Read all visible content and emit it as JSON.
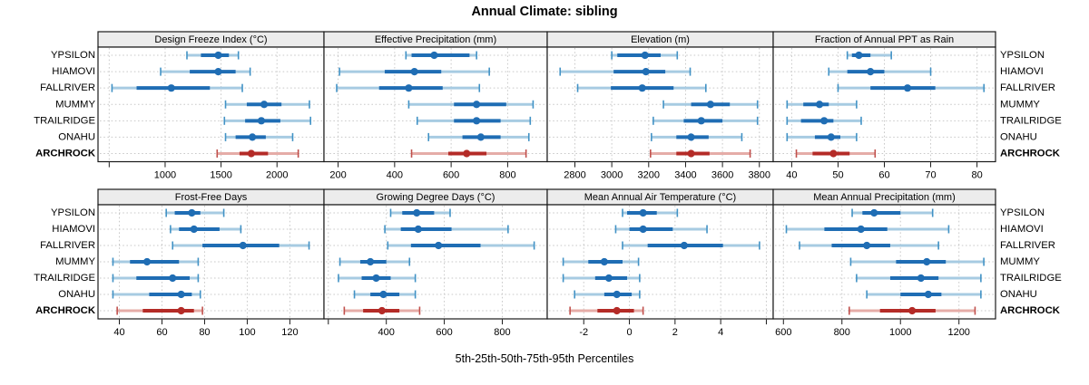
{
  "title": "Annual Climate: sibling",
  "caption": "5th-25th-50th-75th-95th Percentiles",
  "stations": [
    "YPSILON",
    "HIAMOVI",
    "FALLRIVER",
    "MUMMY",
    "TRAILRIDGE",
    "ONAHU",
    "ARCHROCK"
  ],
  "highlight_station": "ARCHROCK",
  "percentile_levels": [
    5,
    25,
    50,
    75,
    95
  ],
  "colors": {
    "normal_dark": "#1f6db4",
    "normal_light": "#a7cbe2",
    "normal_cap": "#4192c5",
    "highlight_dark": "#b42b27",
    "highlight_light": "#e5aca7",
    "highlight_cap": "#c0504c",
    "grid": "#c9c9c9",
    "strip_bg": "#ececec",
    "border": "#1a1a1a"
  },
  "chart_data": [
    {
      "type": "scatter",
      "title": "Design Freeze Index (°C)",
      "row": 0,
      "col": 0,
      "xlim": [
        400,
        2420
      ],
      "ticks": [
        {
          "value": 500,
          "label": ""
        },
        {
          "value": 1000,
          "label": "1000"
        },
        {
          "value": 1500,
          "label": "1500"
        },
        {
          "value": 2000,
          "label": "2000"
        }
      ],
      "series": [
        {
          "station": "YPSILON",
          "percentiles": [
            1195,
            1320,
            1475,
            1570,
            1655
          ]
        },
        {
          "station": "HIAMOVI",
          "percentiles": [
            960,
            1220,
            1475,
            1630,
            1760
          ]
        },
        {
          "station": "FALLRIVER",
          "percentiles": [
            525,
            745,
            1055,
            1400,
            1690
          ]
        },
        {
          "station": "MUMMY",
          "percentiles": [
            1540,
            1730,
            1885,
            2040,
            2290
          ]
        },
        {
          "station": "TRAILRIDGE",
          "percentiles": [
            1530,
            1715,
            1860,
            2030,
            2300
          ]
        },
        {
          "station": "ONAHU",
          "percentiles": [
            1540,
            1630,
            1780,
            1900,
            2140
          ]
        },
        {
          "station": "ARCHROCK",
          "percentiles": [
            1465,
            1665,
            1770,
            1920,
            2190
          ]
        }
      ]
    },
    {
      "type": "scatter",
      "title": "Effective Precipitation (mm)",
      "row": 0,
      "col": 1,
      "xlim": [
        150,
        940
      ],
      "ticks": [
        {
          "value": 200,
          "label": "200"
        },
        {
          "value": 400,
          "label": "400"
        },
        {
          "value": 600,
          "label": "600"
        },
        {
          "value": 800,
          "label": "800"
        }
      ],
      "series": [
        {
          "station": "YPSILON",
          "percentiles": [
            440,
            460,
            540,
            665,
            690
          ]
        },
        {
          "station": "HIAMOVI",
          "percentiles": [
            205,
            365,
            470,
            565,
            735
          ]
        },
        {
          "station": "FALLRIVER",
          "percentiles": [
            195,
            345,
            450,
            570,
            700
          ]
        },
        {
          "station": "MUMMY",
          "percentiles": [
            450,
            610,
            690,
            795,
            890
          ]
        },
        {
          "station": "TRAILRIDGE",
          "percentiles": [
            480,
            610,
            690,
            775,
            880
          ]
        },
        {
          "station": "ONAHU",
          "percentiles": [
            520,
            640,
            705,
            775,
            875
          ]
        },
        {
          "station": "ARCHROCK",
          "percentiles": [
            460,
            590,
            655,
            725,
            865
          ]
        }
      ]
    },
    {
      "type": "scatter",
      "title": "Elevation (m)",
      "row": 0,
      "col": 2,
      "xlim": [
        2650,
        3875
      ],
      "ticks": [
        {
          "value": 2800,
          "label": "2800"
        },
        {
          "value": 3000,
          "label": "3000"
        },
        {
          "value": 3200,
          "label": "3200"
        },
        {
          "value": 3400,
          "label": "3400"
        },
        {
          "value": 3600,
          "label": "3600"
        },
        {
          "value": 3800,
          "label": "3800"
        }
      ],
      "series": [
        {
          "station": "YPSILON",
          "percentiles": [
            3000,
            3030,
            3180,
            3265,
            3355
          ]
        },
        {
          "station": "HIAMOVI",
          "percentiles": [
            2720,
            3010,
            3185,
            3290,
            3425
          ]
        },
        {
          "station": "FALLRIVER",
          "percentiles": [
            2815,
            2995,
            3165,
            3335,
            3510
          ]
        },
        {
          "station": "MUMMY",
          "percentiles": [
            3280,
            3430,
            3535,
            3640,
            3790
          ]
        },
        {
          "station": "TRAILRIDGE",
          "percentiles": [
            3225,
            3390,
            3485,
            3600,
            3790
          ]
        },
        {
          "station": "ONAHU",
          "percentiles": [
            3215,
            3350,
            3430,
            3525,
            3705
          ]
        },
        {
          "station": "ARCHROCK",
          "percentiles": [
            3210,
            3350,
            3430,
            3530,
            3750
          ]
        }
      ]
    },
    {
      "type": "scatter",
      "title": "Fraction of Annual PPT as Rain",
      "row": 0,
      "col": 3,
      "xlim": [
        36,
        84
      ],
      "ticks": [
        {
          "value": 40,
          "label": "40"
        },
        {
          "value": 50,
          "label": "50"
        },
        {
          "value": 60,
          "label": "60"
        },
        {
          "value": 70,
          "label": "70"
        },
        {
          "value": 80,
          "label": "80"
        }
      ],
      "series": [
        {
          "station": "YPSILON",
          "percentiles": [
            52,
            53,
            54.5,
            57,
            61.5
          ]
        },
        {
          "station": "HIAMOVI",
          "percentiles": [
            48,
            52,
            57,
            60,
            70
          ]
        },
        {
          "station": "FALLRIVER",
          "percentiles": [
            50,
            57,
            65,
            71,
            81.5
          ]
        },
        {
          "station": "MUMMY",
          "percentiles": [
            39,
            42.5,
            46,
            48,
            54
          ]
        },
        {
          "station": "TRAILRIDGE",
          "percentiles": [
            39,
            42,
            47,
            49,
            55
          ]
        },
        {
          "station": "ONAHU",
          "percentiles": [
            39,
            45,
            48.5,
            50.5,
            54
          ]
        },
        {
          "station": "ARCHROCK",
          "percentiles": [
            41,
            44.5,
            49,
            52.5,
            58
          ]
        }
      ]
    },
    {
      "type": "scatter",
      "title": "Frost-Free Days",
      "row": 1,
      "col": 0,
      "xlim": [
        30,
        136
      ],
      "ticks": [
        {
          "value": 40,
          "label": "40"
        },
        {
          "value": 60,
          "label": "60"
        },
        {
          "value": 80,
          "label": "80"
        },
        {
          "value": 100,
          "label": "100"
        },
        {
          "value": 120,
          "label": "120"
        }
      ],
      "series": [
        {
          "station": "YPSILON",
          "percentiles": [
            62,
            66,
            74,
            78,
            89
          ]
        },
        {
          "station": "HIAMOVI",
          "percentiles": [
            64,
            68,
            75,
            87,
            97
          ]
        },
        {
          "station": "FALLRIVER",
          "percentiles": [
            65,
            79,
            98,
            115,
            129
          ]
        },
        {
          "station": "MUMMY",
          "percentiles": [
            37,
            45,
            53,
            68,
            77
          ]
        },
        {
          "station": "TRAILRIDGE",
          "percentiles": [
            37,
            48,
            65,
            73,
            77
          ]
        },
        {
          "station": "ONAHU",
          "percentiles": [
            37,
            54,
            69,
            74,
            78
          ]
        },
        {
          "station": "ARCHROCK",
          "percentiles": [
            39,
            51,
            69,
            75,
            79
          ]
        }
      ]
    },
    {
      "type": "scatter",
      "title": "Growing Degree Days (°C)",
      "row": 1,
      "col": 1,
      "xlim": [
        185,
        955
      ],
      "ticks": [
        {
          "value": 200,
          "label": ""
        },
        {
          "value": 400,
          "label": "400"
        },
        {
          "value": 600,
          "label": "600"
        },
        {
          "value": 800,
          "label": "800"
        }
      ],
      "series": [
        {
          "station": "YPSILON",
          "percentiles": [
            415,
            455,
            505,
            565,
            620
          ]
        },
        {
          "station": "HIAMOVI",
          "percentiles": [
            395,
            450,
            510,
            625,
            820
          ]
        },
        {
          "station": "FALLRIVER",
          "percentiles": [
            405,
            485,
            580,
            725,
            910
          ]
        },
        {
          "station": "MUMMY",
          "percentiles": [
            240,
            310,
            345,
            400,
            480
          ]
        },
        {
          "station": "TRAILRIDGE",
          "percentiles": [
            235,
            315,
            365,
            415,
            500
          ]
        },
        {
          "station": "ONAHU",
          "percentiles": [
            290,
            345,
            390,
            445,
            500
          ]
        },
        {
          "station": "ARCHROCK",
          "percentiles": [
            255,
            320,
            385,
            445,
            515
          ]
        }
      ]
    },
    {
      "type": "scatter",
      "title": "Mean Annual Air Temperature (°C)",
      "row": 1,
      "col": 2,
      "xlim": [
        -3.6,
        6.3
      ],
      "ticks": [
        {
          "value": -2,
          "label": "-2"
        },
        {
          "value": 0,
          "label": "0"
        },
        {
          "value": 2,
          "label": "2"
        },
        {
          "value": 4,
          "label": "4"
        },
        {
          "value": 6,
          "label": ""
        }
      ],
      "series": [
        {
          "station": "YPSILON",
          "percentiles": [
            -0.3,
            -0.1,
            0.6,
            1.2,
            2.1
          ]
        },
        {
          "station": "HIAMOVI",
          "percentiles": [
            -0.6,
            0.0,
            0.6,
            1.9,
            3.4
          ]
        },
        {
          "station": "FALLRIVER",
          "percentiles": [
            -0.3,
            0.8,
            2.4,
            4.1,
            5.7
          ]
        },
        {
          "station": "MUMMY",
          "percentiles": [
            -2.9,
            -1.8,
            -1.1,
            -0.3,
            0.4
          ]
        },
        {
          "station": "TRAILRIDGE",
          "percentiles": [
            -2.9,
            -1.5,
            -0.9,
            -0.1,
            0.45
          ]
        },
        {
          "station": "ONAHU",
          "percentiles": [
            -2.4,
            -1.1,
            -0.55,
            0.1,
            0.45
          ]
        },
        {
          "station": "ARCHROCK",
          "percentiles": [
            -2.6,
            -1.4,
            -0.55,
            0.2,
            0.6
          ]
        }
      ]
    },
    {
      "type": "scatter",
      "title": "Mean Annual Precipitation (mm)",
      "row": 1,
      "col": 3,
      "xlim": [
        565,
        1325
      ],
      "ticks": [
        {
          "value": 600,
          "label": "600"
        },
        {
          "value": 800,
          "label": "800"
        },
        {
          "value": 1000,
          "label": "1000"
        },
        {
          "value": 1200,
          "label": "1200"
        }
      ],
      "series": [
        {
          "station": "YPSILON",
          "percentiles": [
            835,
            870,
            910,
            1000,
            1110
          ]
        },
        {
          "station": "HIAMOVI",
          "percentiles": [
            610,
            740,
            865,
            955,
            1165
          ]
        },
        {
          "station": "FALLRIVER",
          "percentiles": [
            655,
            765,
            885,
            965,
            1130
          ]
        },
        {
          "station": "MUMMY",
          "percentiles": [
            830,
            985,
            1090,
            1155,
            1285
          ]
        },
        {
          "station": "TRAILRIDGE",
          "percentiles": [
            850,
            965,
            1070,
            1130,
            1275
          ]
        },
        {
          "station": "ONAHU",
          "percentiles": [
            885,
            1000,
            1095,
            1140,
            1275
          ]
        },
        {
          "station": "ARCHROCK",
          "percentiles": [
            825,
            930,
            1040,
            1120,
            1255
          ]
        }
      ]
    }
  ]
}
